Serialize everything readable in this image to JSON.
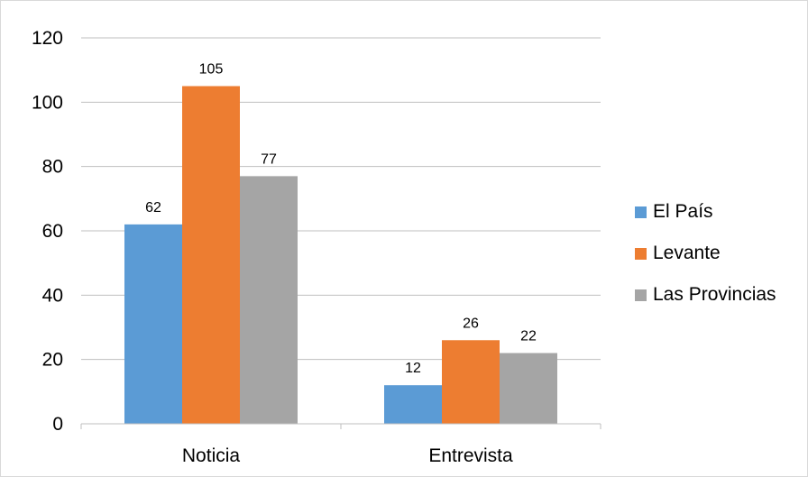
{
  "chart_data": {
    "type": "bar",
    "categories": [
      "Noticia",
      "Entrevista"
    ],
    "series": [
      {
        "name": "El País",
        "values": [
          62,
          12
        ],
        "color": "#5B9BD5"
      },
      {
        "name": "Levante",
        "values": [
          105,
          26
        ],
        "color": "#ED7D31"
      },
      {
        "name": "Las Provincias",
        "values": [
          77,
          22
        ],
        "color": "#A5A5A5"
      }
    ],
    "ylim": [
      0,
      120
    ],
    "yticks": [
      0,
      20,
      40,
      60,
      80,
      100,
      120
    ],
    "grid": true,
    "legend": "right",
    "gridline_color": "#bfbfbf"
  }
}
